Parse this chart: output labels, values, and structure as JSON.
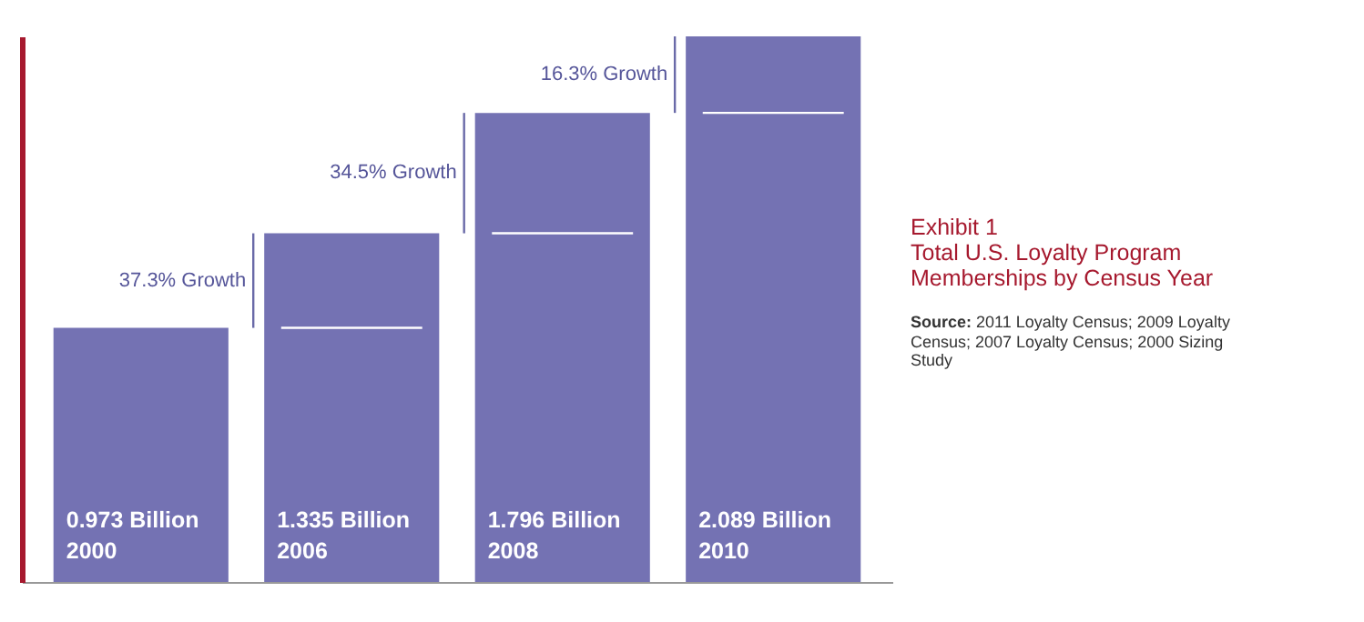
{
  "chart_data": {
    "type": "bar",
    "title": "Exhibit 1",
    "subtitle": "Total U.S. Loyalty Program Memberships by Census Year",
    "categories": [
      "2000",
      "2006",
      "2008",
      "2010"
    ],
    "series": [
      {
        "color": "#7472b3",
        "values": [
          0.973,
          1.335,
          1.796,
          2.089
        ],
        "value_labels": [
          "0.973 Billion",
          "1.335 Billion",
          "1.796 Billion",
          "2.089 Billion"
        ]
      }
    ],
    "annotations": [
      "37.3% Growth",
      "34.5% Growth",
      "16.3% Growth",
      "Source: 2011 Loyalty Census; 2009 Loyalty Census; 2007 Loyalty Census; 2000 Sizing Study"
    ],
    "tick_labels": false,
    "grid": false
  }
}
